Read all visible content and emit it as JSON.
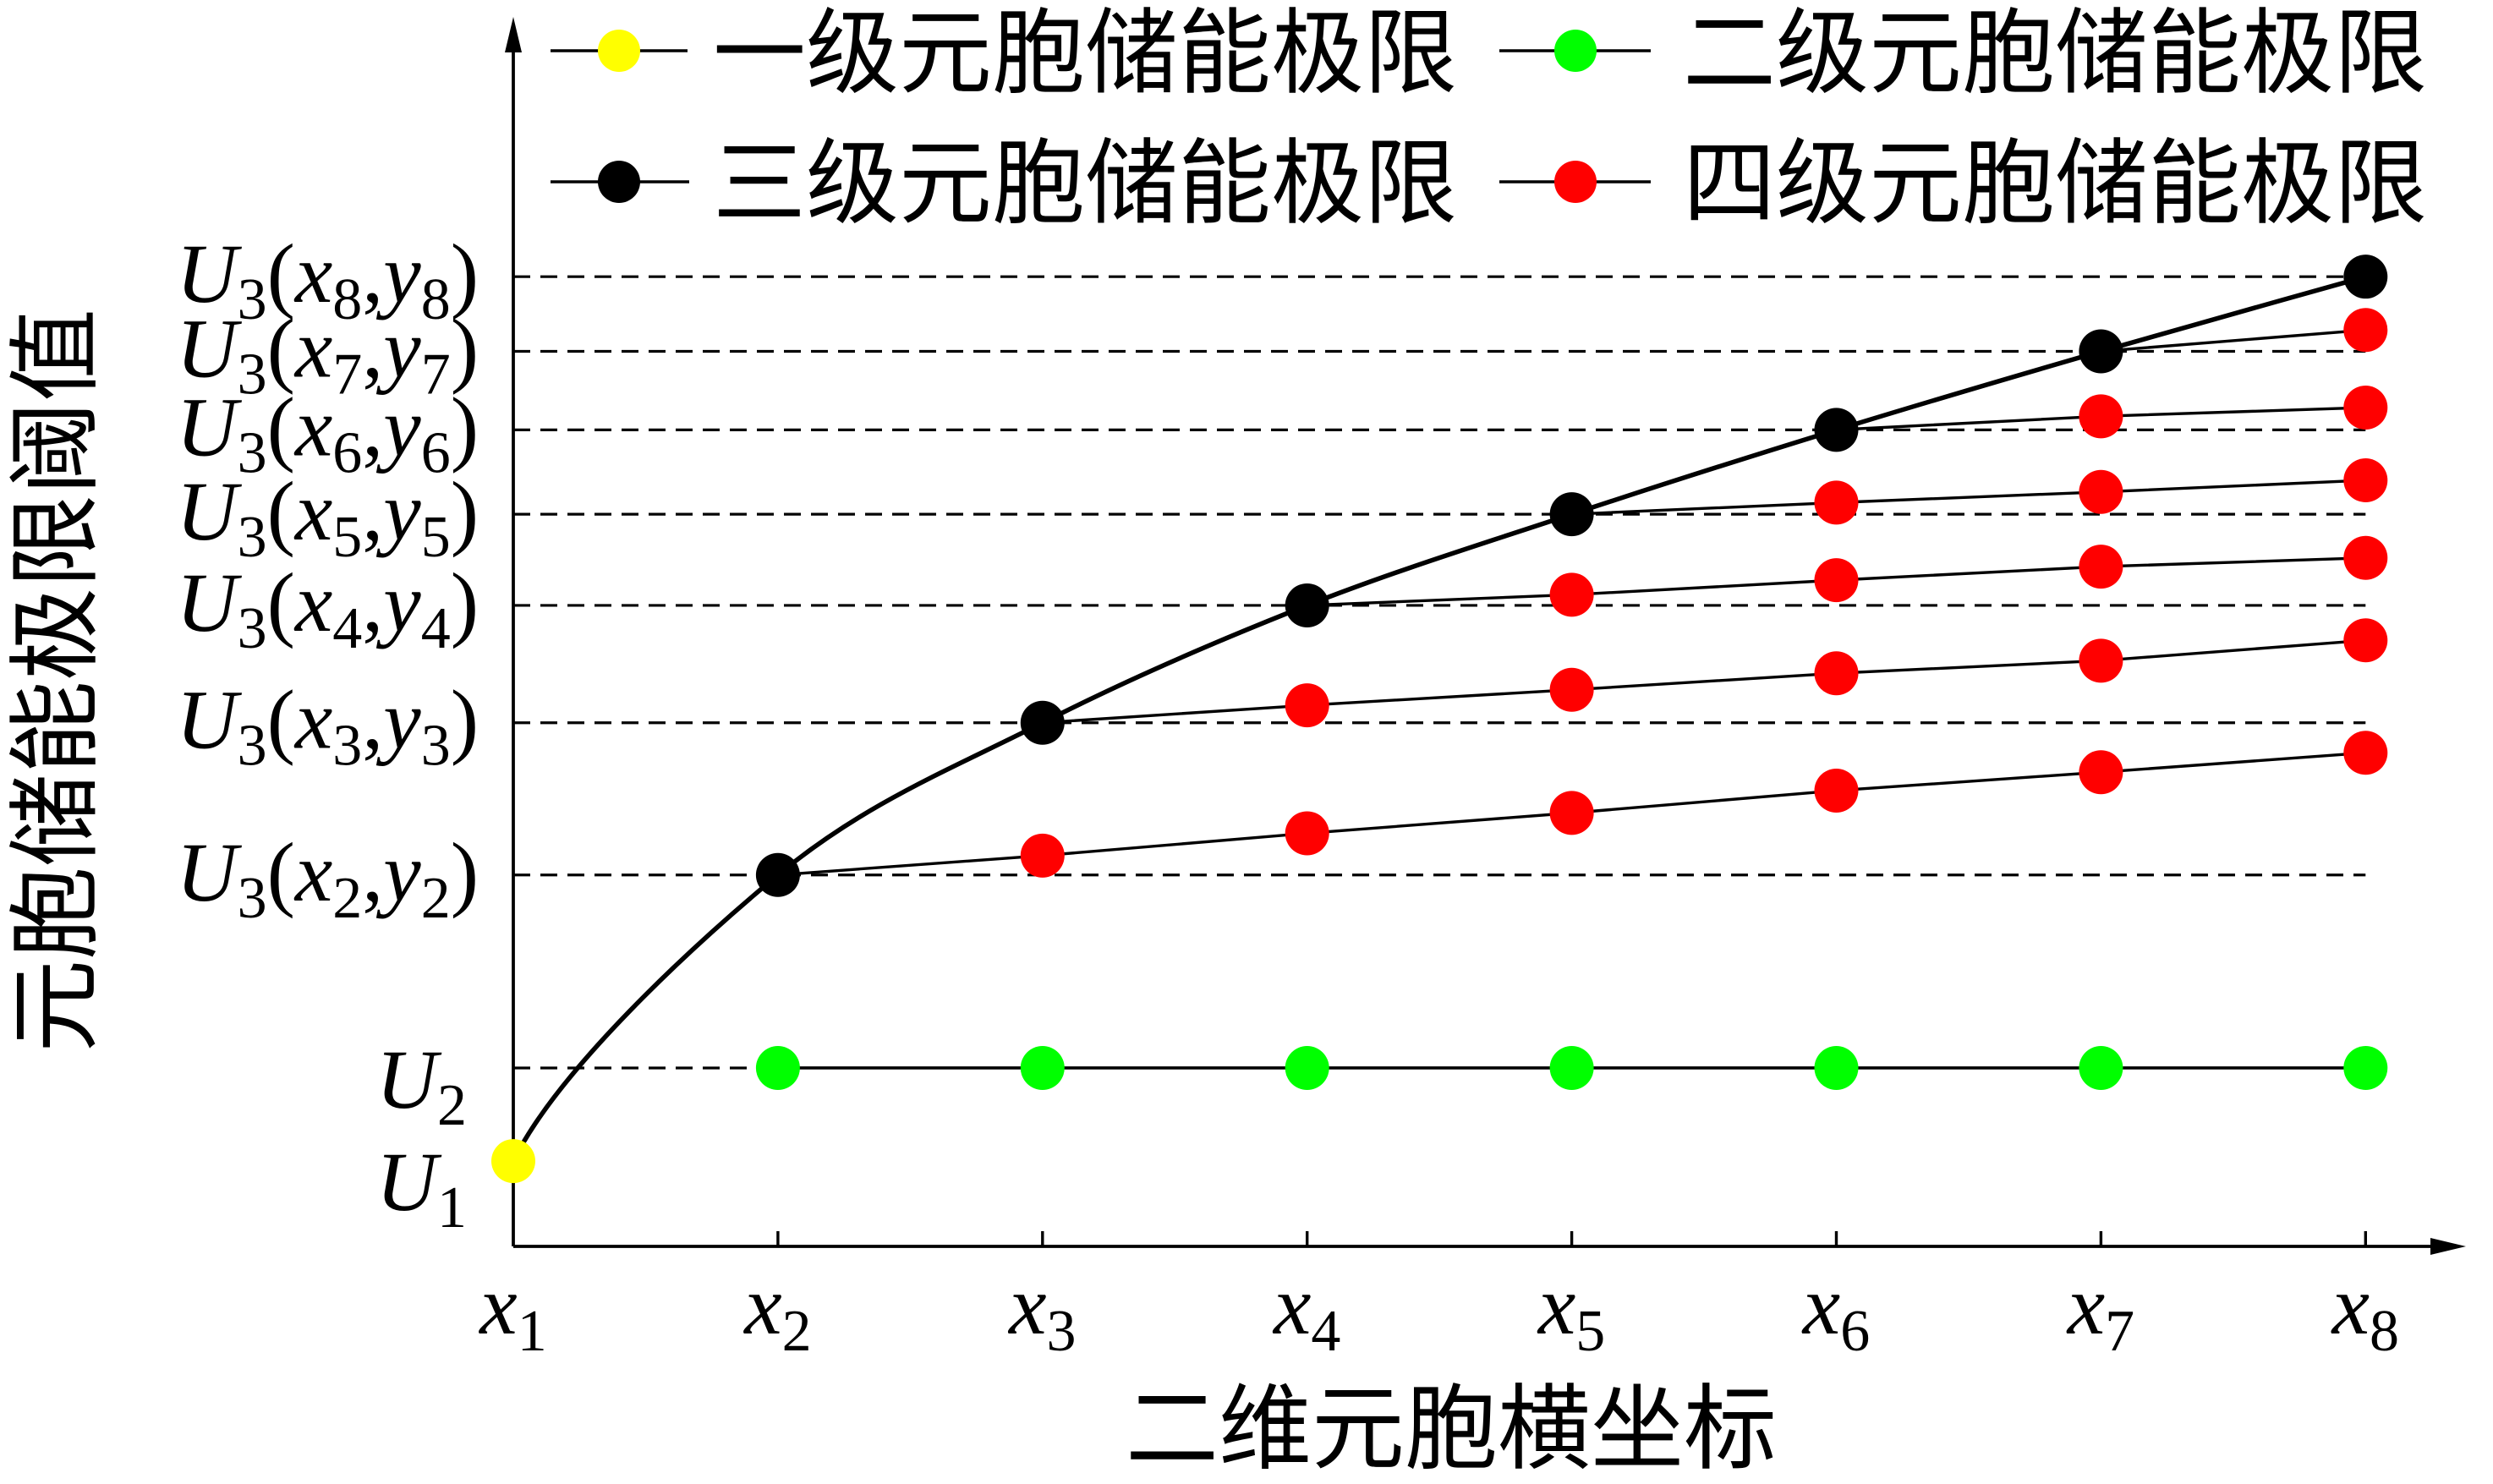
{
  "chart_data": {
    "type": "line",
    "title": "",
    "xlabel": "二维元胞横坐标",
    "ylabel": "元胞储能极限阈值",
    "categories": [
      "x1",
      "x2",
      "x3",
      "x4",
      "x5",
      "x6",
      "x7",
      "x8"
    ],
    "ylim": [
      0,
      12.6
    ],
    "y_ticks": [
      {
        "label": "U1",
        "value": 0.88
      },
      {
        "label": "U2",
        "value": 1.84
      },
      {
        "label": "U3(x2,y2)",
        "value": 3.83
      },
      {
        "label": "U3(x3,y3)",
        "value": 5.4
      },
      {
        "label": "U3(x4,y4)",
        "value": 6.61
      },
      {
        "label": "U3(x5,y5)",
        "value": 7.55
      },
      {
        "label": "U3(x6,y6)",
        "value": 8.42
      },
      {
        "label": "U3(x7,y7)",
        "value": 9.23
      },
      {
        "label": "U3(x8,y8)",
        "value": 10.0
      }
    ],
    "grid": false,
    "reference_lines": {
      "style": "dashed",
      "color": "#000000"
    },
    "legend": {
      "placement": "top",
      "columns": 2
    },
    "series": [
      {
        "name": "一级元胞储能极限",
        "color": "#ffff00",
        "line": "none",
        "values": [
          0.88,
          null,
          null,
          null,
          null,
          null,
          null,
          null
        ]
      },
      {
        "name": "二级元胞储能极限",
        "color": "#00ff00",
        "line": "straight",
        "values": [
          null,
          1.84,
          1.84,
          1.84,
          1.84,
          1.84,
          1.84,
          1.84
        ]
      },
      {
        "name": "三级元胞储能极限",
        "color": "#000000",
        "line": "smooth",
        "values": [
          null,
          3.83,
          5.4,
          6.61,
          7.55,
          8.42,
          9.23,
          10.0
        ]
      },
      {
        "name": "四级元胞储能极限",
        "color": "#ff0000",
        "line": "straight",
        "groups": [
          {
            "values": [
              null,
              null,
              4.03,
              4.26,
              4.47,
              4.7,
              4.89,
              5.09
            ]
          },
          {
            "values": [
              null,
              null,
              null,
              5.58,
              5.74,
              5.91,
              6.04,
              6.25
            ]
          },
          {
            "values": [
              null,
              null,
              null,
              null,
              6.72,
              6.87,
              7.01,
              7.1
            ]
          },
          {
            "values": [
              null,
              null,
              null,
              null,
              null,
              7.67,
              7.78,
              7.9
            ]
          },
          {
            "values": [
              null,
              null,
              null,
              null,
              null,
              null,
              8.56,
              8.65
            ]
          },
          {
            "values": [
              null,
              null,
              null,
              null,
              null,
              null,
              null,
              9.45
            ]
          }
        ]
      }
    ]
  }
}
